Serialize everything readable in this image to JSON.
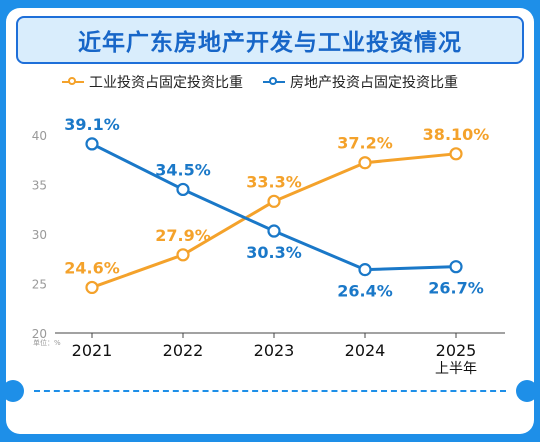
{
  "title": "近年广东房地产开发与工业投资情况",
  "unit_label": "单位：%",
  "colors": {
    "industrial": "#f4a22b",
    "realestate": "#1a78c8",
    "brand": "#1e8fe8"
  },
  "chart_data": {
    "type": "line",
    "title": "近年广东房地产开发与工业投资情况",
    "categories": [
      "2021",
      "2022",
      "2023",
      "2024",
      "2025"
    ],
    "category_sublabels": [
      "",
      "",
      "",
      "",
      "上半年"
    ],
    "ylim": [
      20,
      40
    ],
    "yticks": [
      20,
      25,
      30,
      35,
      40
    ],
    "grid": false,
    "legend": "top-left",
    "series": [
      {
        "name": "工业投资占固定投资比重",
        "values": [
          24.6,
          27.9,
          33.3,
          37.2,
          38.1
        ],
        "labels": [
          "24.6%",
          "27.9%",
          "33.3%",
          "37.2%",
          "38.10%"
        ]
      },
      {
        "name": "房地产投资占固定投资比重",
        "values": [
          39.1,
          34.5,
          30.3,
          26.4,
          26.7
        ],
        "labels": [
          "39.1%",
          "34.5%",
          "30.3%",
          "26.4%",
          "26.7%"
        ]
      }
    ]
  }
}
